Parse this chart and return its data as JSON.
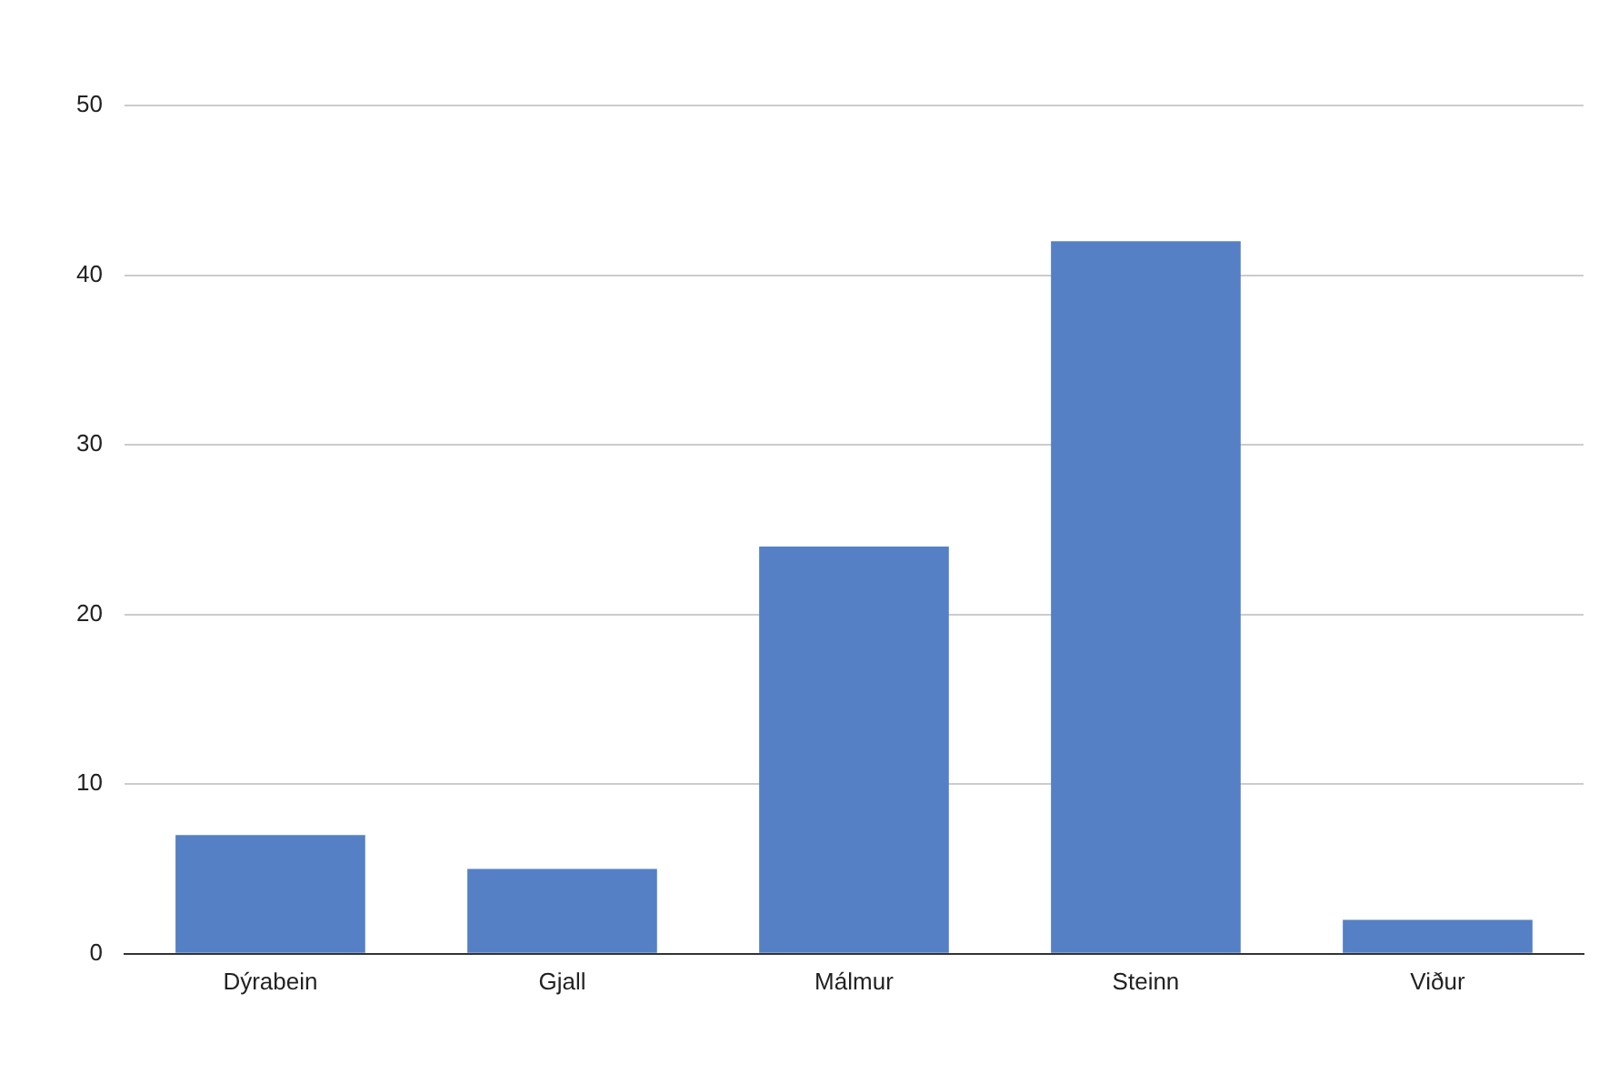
{
  "chart_data": {
    "type": "bar",
    "categories": [
      "Dýrabein",
      "Gjall",
      "Málmur",
      "Steinn",
      "Viður"
    ],
    "values": [
      7,
      5,
      24,
      42,
      2
    ],
    "color": "#5580c6",
    "ylim": [
      0,
      50
    ],
    "yticks": [
      0,
      10,
      20,
      30,
      40,
      50
    ],
    "grid": "y"
  }
}
